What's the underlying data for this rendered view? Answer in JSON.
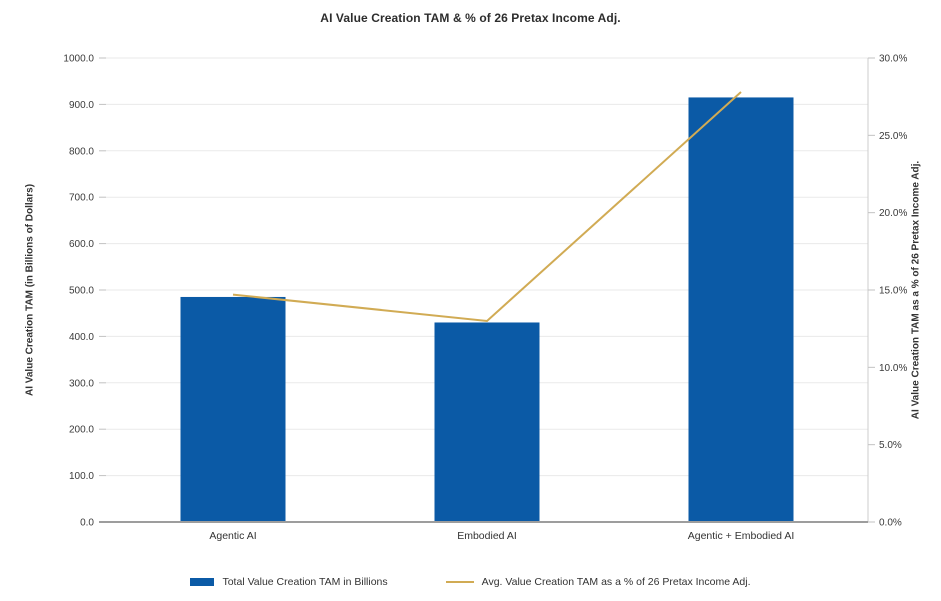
{
  "chart_data": {
    "type": "combo-bar-line",
    "title": "AI Value Creation TAM & % of 26 Pretax Income Adj.",
    "categories": [
      "Agentic AI",
      "Embodied AI",
      "Agentic + Embodied AI"
    ],
    "series": [
      {
        "name": "Total Value Creation TAM in Billions",
        "type": "bar",
        "axis": "left",
        "color": "#0B5AA6",
        "values": [
          485.0,
          430.0,
          915.0
        ]
      },
      {
        "name": "Avg. Value Creation TAM as a % of 26 Pretax Income Adj.",
        "type": "line",
        "axis": "right",
        "color": "#D1AB54",
        "values": [
          14.7,
          13.0,
          27.8
        ]
      }
    ],
    "left_axis": {
      "label": "AI Value Creation TAM (in Billions of Dollars)",
      "min": 0,
      "max": 1000,
      "step": 100,
      "tick_suffix": "",
      "tick_decimals": 1
    },
    "right_axis": {
      "label": "AI Value Creation TAM as a % of 26 Pretax Income Adj.",
      "min": 0,
      "max": 30,
      "step": 5,
      "tick_suffix": "%",
      "tick_decimals": 1
    },
    "grid": true,
    "legend_position": "bottom",
    "colors": {
      "gridline": "#EAEAEA",
      "tick_stub": "#C2C2C2",
      "bottom_axis": "#9D9D9D",
      "right_axis_line": "#CCCCCC",
      "tick_text": "#3a3a3a",
      "category_text": "#333333"
    }
  }
}
